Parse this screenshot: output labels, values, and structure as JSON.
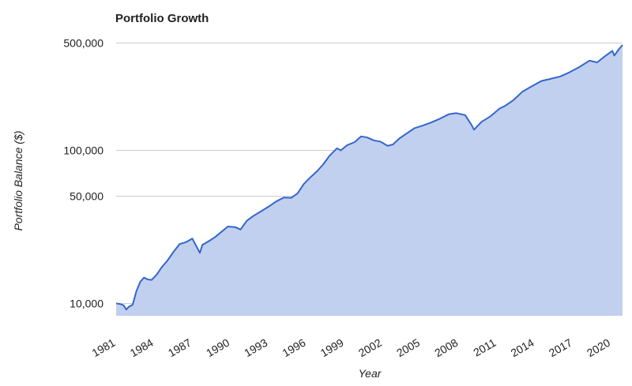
{
  "chart_data": {
    "type": "area",
    "title": "Portfolio Growth",
    "xlabel": "Year",
    "ylabel": "Portfolio Balance ($)",
    "y_scale": "log",
    "ylim": [
      8300,
      560000
    ],
    "xlim": [
      1981.0,
      2020.9
    ],
    "y_ticks": [
      {
        "value": 10000,
        "label": "10,000"
      },
      {
        "value": 50000,
        "label": "50,000"
      },
      {
        "value": 100000,
        "label": "100,000"
      },
      {
        "value": 500000,
        "label": "500,000"
      }
    ],
    "x_ticks": [
      {
        "value": 1981,
        "label": "1981"
      },
      {
        "value": 1984,
        "label": "1984"
      },
      {
        "value": 1987,
        "label": "1987"
      },
      {
        "value": 1990,
        "label": "1990"
      },
      {
        "value": 1993,
        "label": "1993"
      },
      {
        "value": 1996,
        "label": "1996"
      },
      {
        "value": 1999,
        "label": "1999"
      },
      {
        "value": 2002,
        "label": "2002"
      },
      {
        "value": 2005,
        "label": "2005"
      },
      {
        "value": 2008,
        "label": "2008"
      },
      {
        "value": 2011,
        "label": "2011"
      },
      {
        "value": 2014,
        "label": "2014"
      },
      {
        "value": 2017,
        "label": "2017"
      },
      {
        "value": 2020,
        "label": "2020"
      }
    ],
    "grid": true,
    "legend": "none",
    "colors": {
      "line": "#3366cc",
      "fill": "#c2d0ef",
      "grid": "#cccccc"
    },
    "series": [
      {
        "x": [
          1981.0,
          1981.3,
          1981.6,
          1981.8,
          1982.0,
          1982.3,
          1982.6,
          1982.9,
          1983.2,
          1983.5,
          1983.8,
          1984.2,
          1984.6,
          1985.0,
          1985.5,
          1986.0,
          1986.5,
          1987.0,
          1987.6,
          1987.8,
          1988.3,
          1988.8,
          1989.3,
          1989.8,
          1990.4,
          1990.8,
          1991.3,
          1991.8,
          1992.4,
          1993.0,
          1993.6,
          1994.2,
          1994.8,
          1995.3,
          1995.8,
          1996.3,
          1996.8,
          1997.3,
          1997.8,
          1998.4,
          1998.7,
          1999.2,
          1999.8,
          2000.3,
          2000.8,
          2001.3,
          2001.8,
          2002.4,
          2002.8,
          2003.3,
          2003.8,
          2004.5,
          2005.2,
          2005.8,
          2006.5,
          2007.2,
          2007.8,
          2008.5,
          2009.0,
          2009.2,
          2009.8,
          2010.5,
          2011.2,
          2011.7,
          2012.3,
          2013.0,
          2013.8,
          2014.5,
          2015.3,
          2016.0,
          2016.7,
          2017.5,
          2018.3,
          2018.9,
          2019.5,
          2020.1,
          2020.25,
          2020.6,
          2020.9
        ],
        "values": [
          10000,
          9900,
          9700,
          9100,
          9500,
          9800,
          12000,
          13800,
          14700,
          14300,
          14200,
          15400,
          17200,
          18800,
          21500,
          24300,
          25000,
          26400,
          21300,
          24000,
          25400,
          27000,
          29200,
          31600,
          31300,
          30200,
          34500,
          37000,
          39600,
          42500,
          46000,
          48800,
          48600,
          52000,
          60000,
          66000,
          72000,
          80000,
          91000,
          102000,
          99000,
          107000,
          112000,
          122000,
          120000,
          115000,
          113000,
          106000,
          108000,
          118000,
          126000,
          138000,
          144000,
          150000,
          159000,
          170000,
          173000,
          168000,
          145000,
          135000,
          152000,
          165000,
          185000,
          194000,
          210000,
          238000,
          260000,
          280000,
          290000,
          300000,
          318000,
          345000,
          380000,
          370000,
          405000,
          440000,
          410000,
          450000,
          480000
        ]
      }
    ]
  }
}
